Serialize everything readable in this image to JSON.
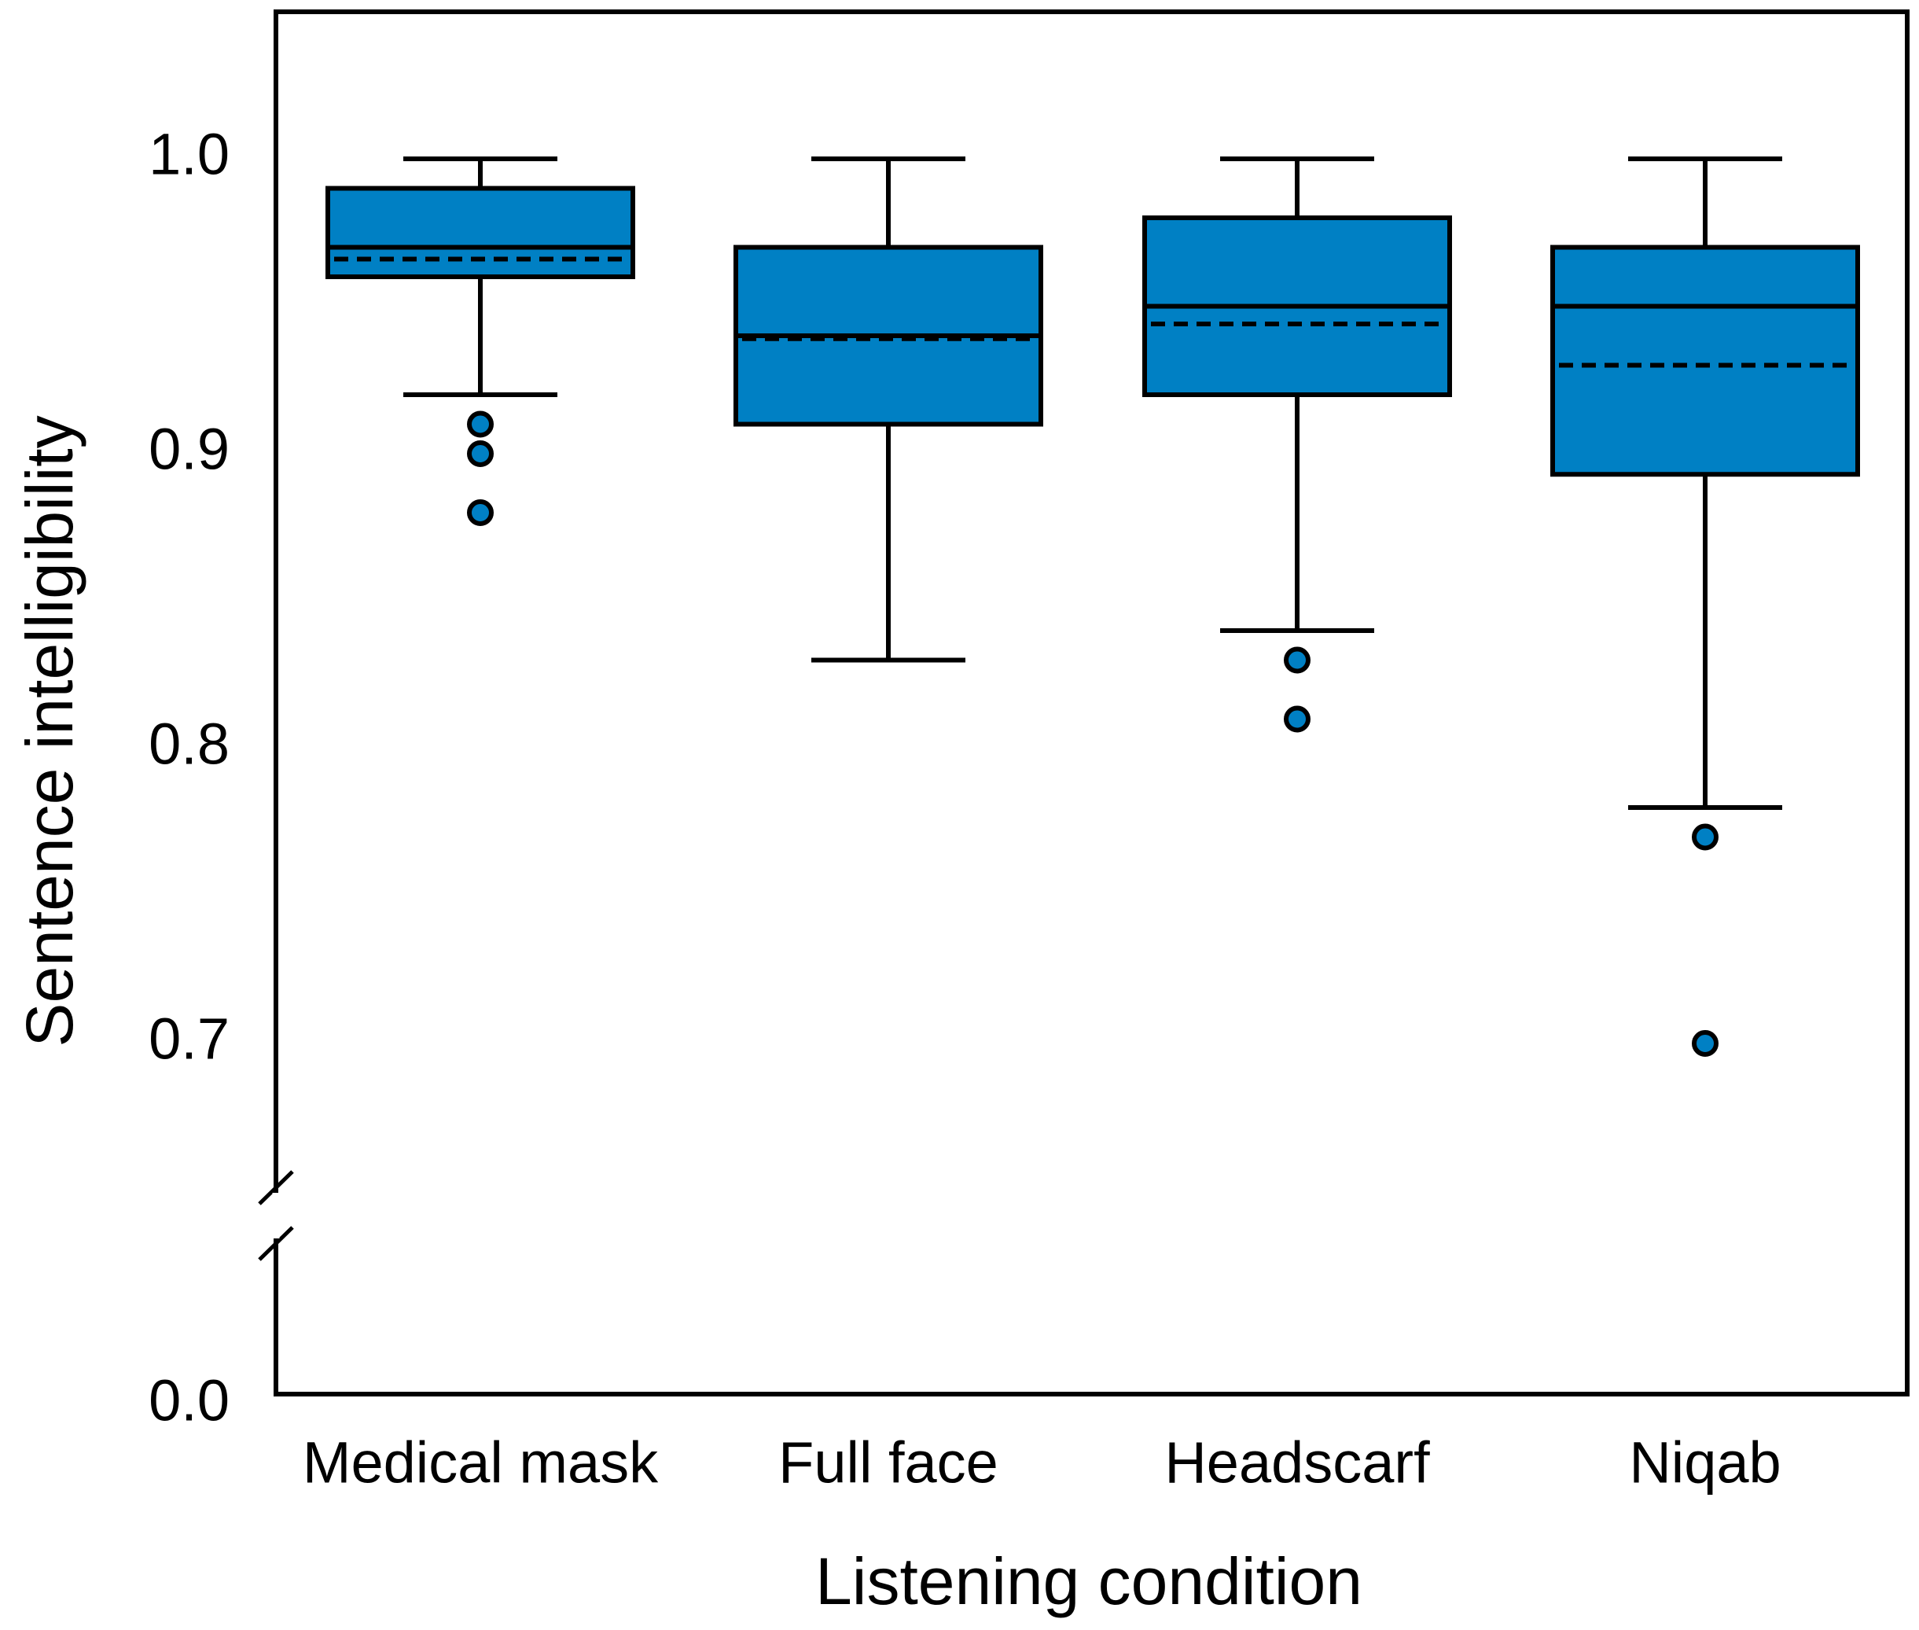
{
  "colors": {
    "box_fill": "#0080C4",
    "stroke": "#000000",
    "background": "#FFFFFF"
  },
  "chart_data": {
    "type": "box",
    "title": "",
    "xlabel": "Listening condition",
    "ylabel": "Sentence intelligibility",
    "y_ticks": [
      1.0,
      0.9,
      0.8,
      0.7
    ],
    "y_tick_labels": [
      "1.0",
      "0.9",
      "0.8",
      "0.7"
    ],
    "y_axis_break": true,
    "y_baseline_label": "0.0",
    "ylim": [
      0.0,
      1.05
    ],
    "grid": false,
    "legend": "none",
    "median_line_style": "solid",
    "mean_line_style": "dashed",
    "categories": [
      "Medical mask",
      "Full face",
      "Headscarf",
      "Niqab"
    ],
    "boxes": [
      {
        "category": "Medical mask",
        "whisker_low": 0.92,
        "q1": 0.96,
        "median": 0.97,
        "mean": 0.966,
        "q3": 0.99,
        "whisker_high": 1.0,
        "outliers": [
          0.91,
          0.9,
          0.88
        ]
      },
      {
        "category": "Full face",
        "whisker_low": 0.83,
        "q1": 0.91,
        "median": 0.94,
        "mean": 0.939,
        "q3": 0.97,
        "whisker_high": 1.0,
        "outliers": []
      },
      {
        "category": "Headscarf",
        "whisker_low": 0.84,
        "q1": 0.92,
        "median": 0.95,
        "mean": 0.944,
        "q3": 0.98,
        "whisker_high": 1.0,
        "outliers": [
          0.83,
          0.81
        ]
      },
      {
        "category": "Niqab",
        "whisker_low": 0.78,
        "q1": 0.893,
        "median": 0.95,
        "mean": 0.93,
        "q3": 0.97,
        "whisker_high": 1.0,
        "outliers": [
          0.77,
          0.7
        ]
      }
    ]
  }
}
